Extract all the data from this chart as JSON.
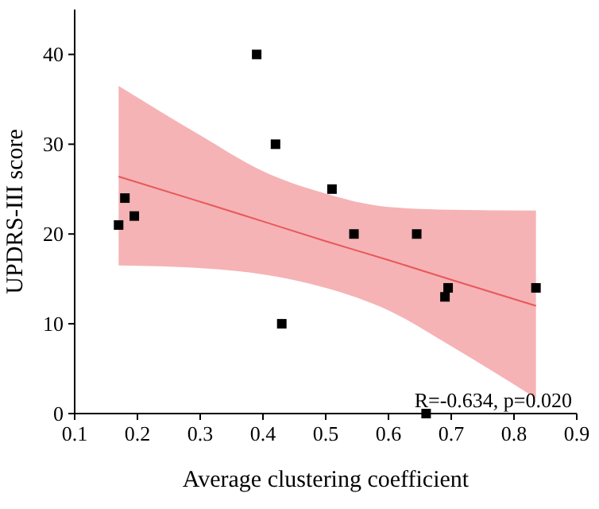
{
  "chart_data": {
    "type": "scatter",
    "xlabel": "Average clustering coefficient",
    "ylabel": "UPDRS-III score",
    "xlim": [
      0.1,
      0.9
    ],
    "xticks": [
      0.1,
      0.2,
      0.3,
      0.4,
      0.5,
      0.6,
      0.7,
      0.8,
      0.9
    ],
    "ylim": [
      0,
      45
    ],
    "yticks": [
      0,
      10,
      20,
      30,
      40
    ],
    "grid": false,
    "series": [
      {
        "type": "line",
        "color": "#e8575a",
        "x": [
          0.17,
          0.3,
          0.4,
          0.5,
          0.6,
          0.7,
          0.835
        ],
        "values": [
          26.4,
          23.6,
          21.4,
          19.2,
          17.1,
          14.9,
          12.0
        ],
        "lower": [
          16.5,
          16.2,
          15.5,
          14,
          11.5,
          7.5,
          1.7
        ],
        "upper": [
          36.5,
          31,
          27,
          24.5,
          23,
          22.7,
          22.6
        ]
      },
      {
        "marker": "square",
        "color": "#000000",
        "x": [
          0.17,
          0.18,
          0.195,
          0.39,
          0.42,
          0.43,
          0.51,
          0.545,
          0.645,
          0.66,
          0.69,
          0.695,
          0.835
        ],
        "values": [
          21,
          24,
          22,
          40,
          30,
          10,
          25,
          20,
          20,
          0,
          13,
          14,
          14
        ]
      }
    ],
    "annotations": [
      "R=-0.634, p=0.020"
    ]
  }
}
